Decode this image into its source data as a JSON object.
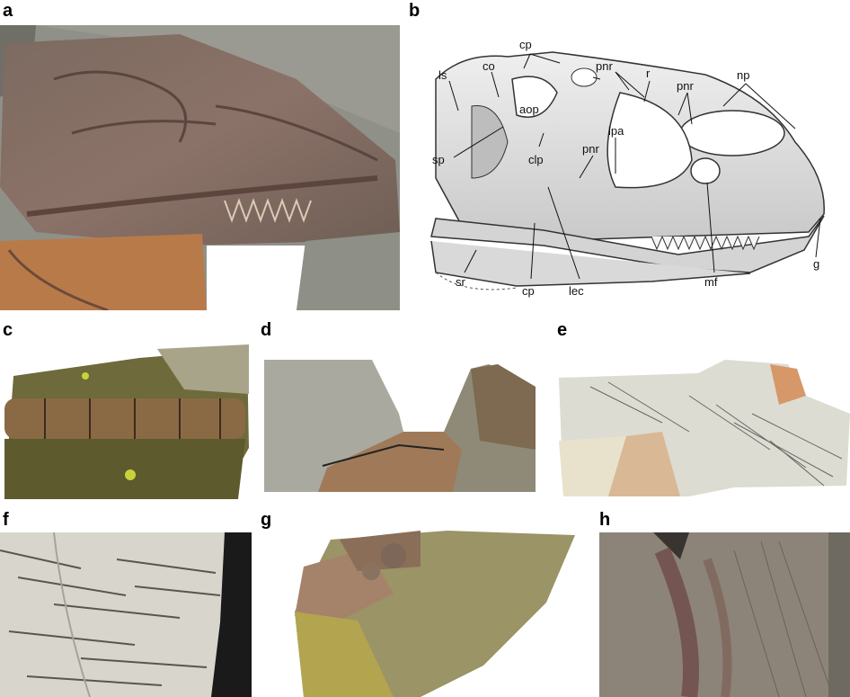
{
  "panels": {
    "a": "a",
    "b": "b",
    "c": "c",
    "d": "d",
    "e": "e",
    "f": "f",
    "g": "g",
    "h": "h"
  },
  "annotations": {
    "ls": "ls",
    "co": "co",
    "cp_top": "cp",
    "pnr_top": "pnr",
    "r": "r",
    "pnr_right": "pnr",
    "np": "np",
    "aop": "aop",
    "sp": "sp",
    "clp": "clp",
    "pnr_mid": "pnr",
    "lpa": "lpa",
    "mf": "mf",
    "g": "g",
    "sr": "sr",
    "cp_bottom": "cp",
    "lec": "lec"
  },
  "colors": {
    "rock_grey": "#8e8f86",
    "bone_brown": "#7a5a4c",
    "matrix_orange": "#b97a4a",
    "drawing_bone": "#e4e4e4",
    "pale_slab": "#dcdcd2",
    "green_rock": "#8a8a58"
  }
}
